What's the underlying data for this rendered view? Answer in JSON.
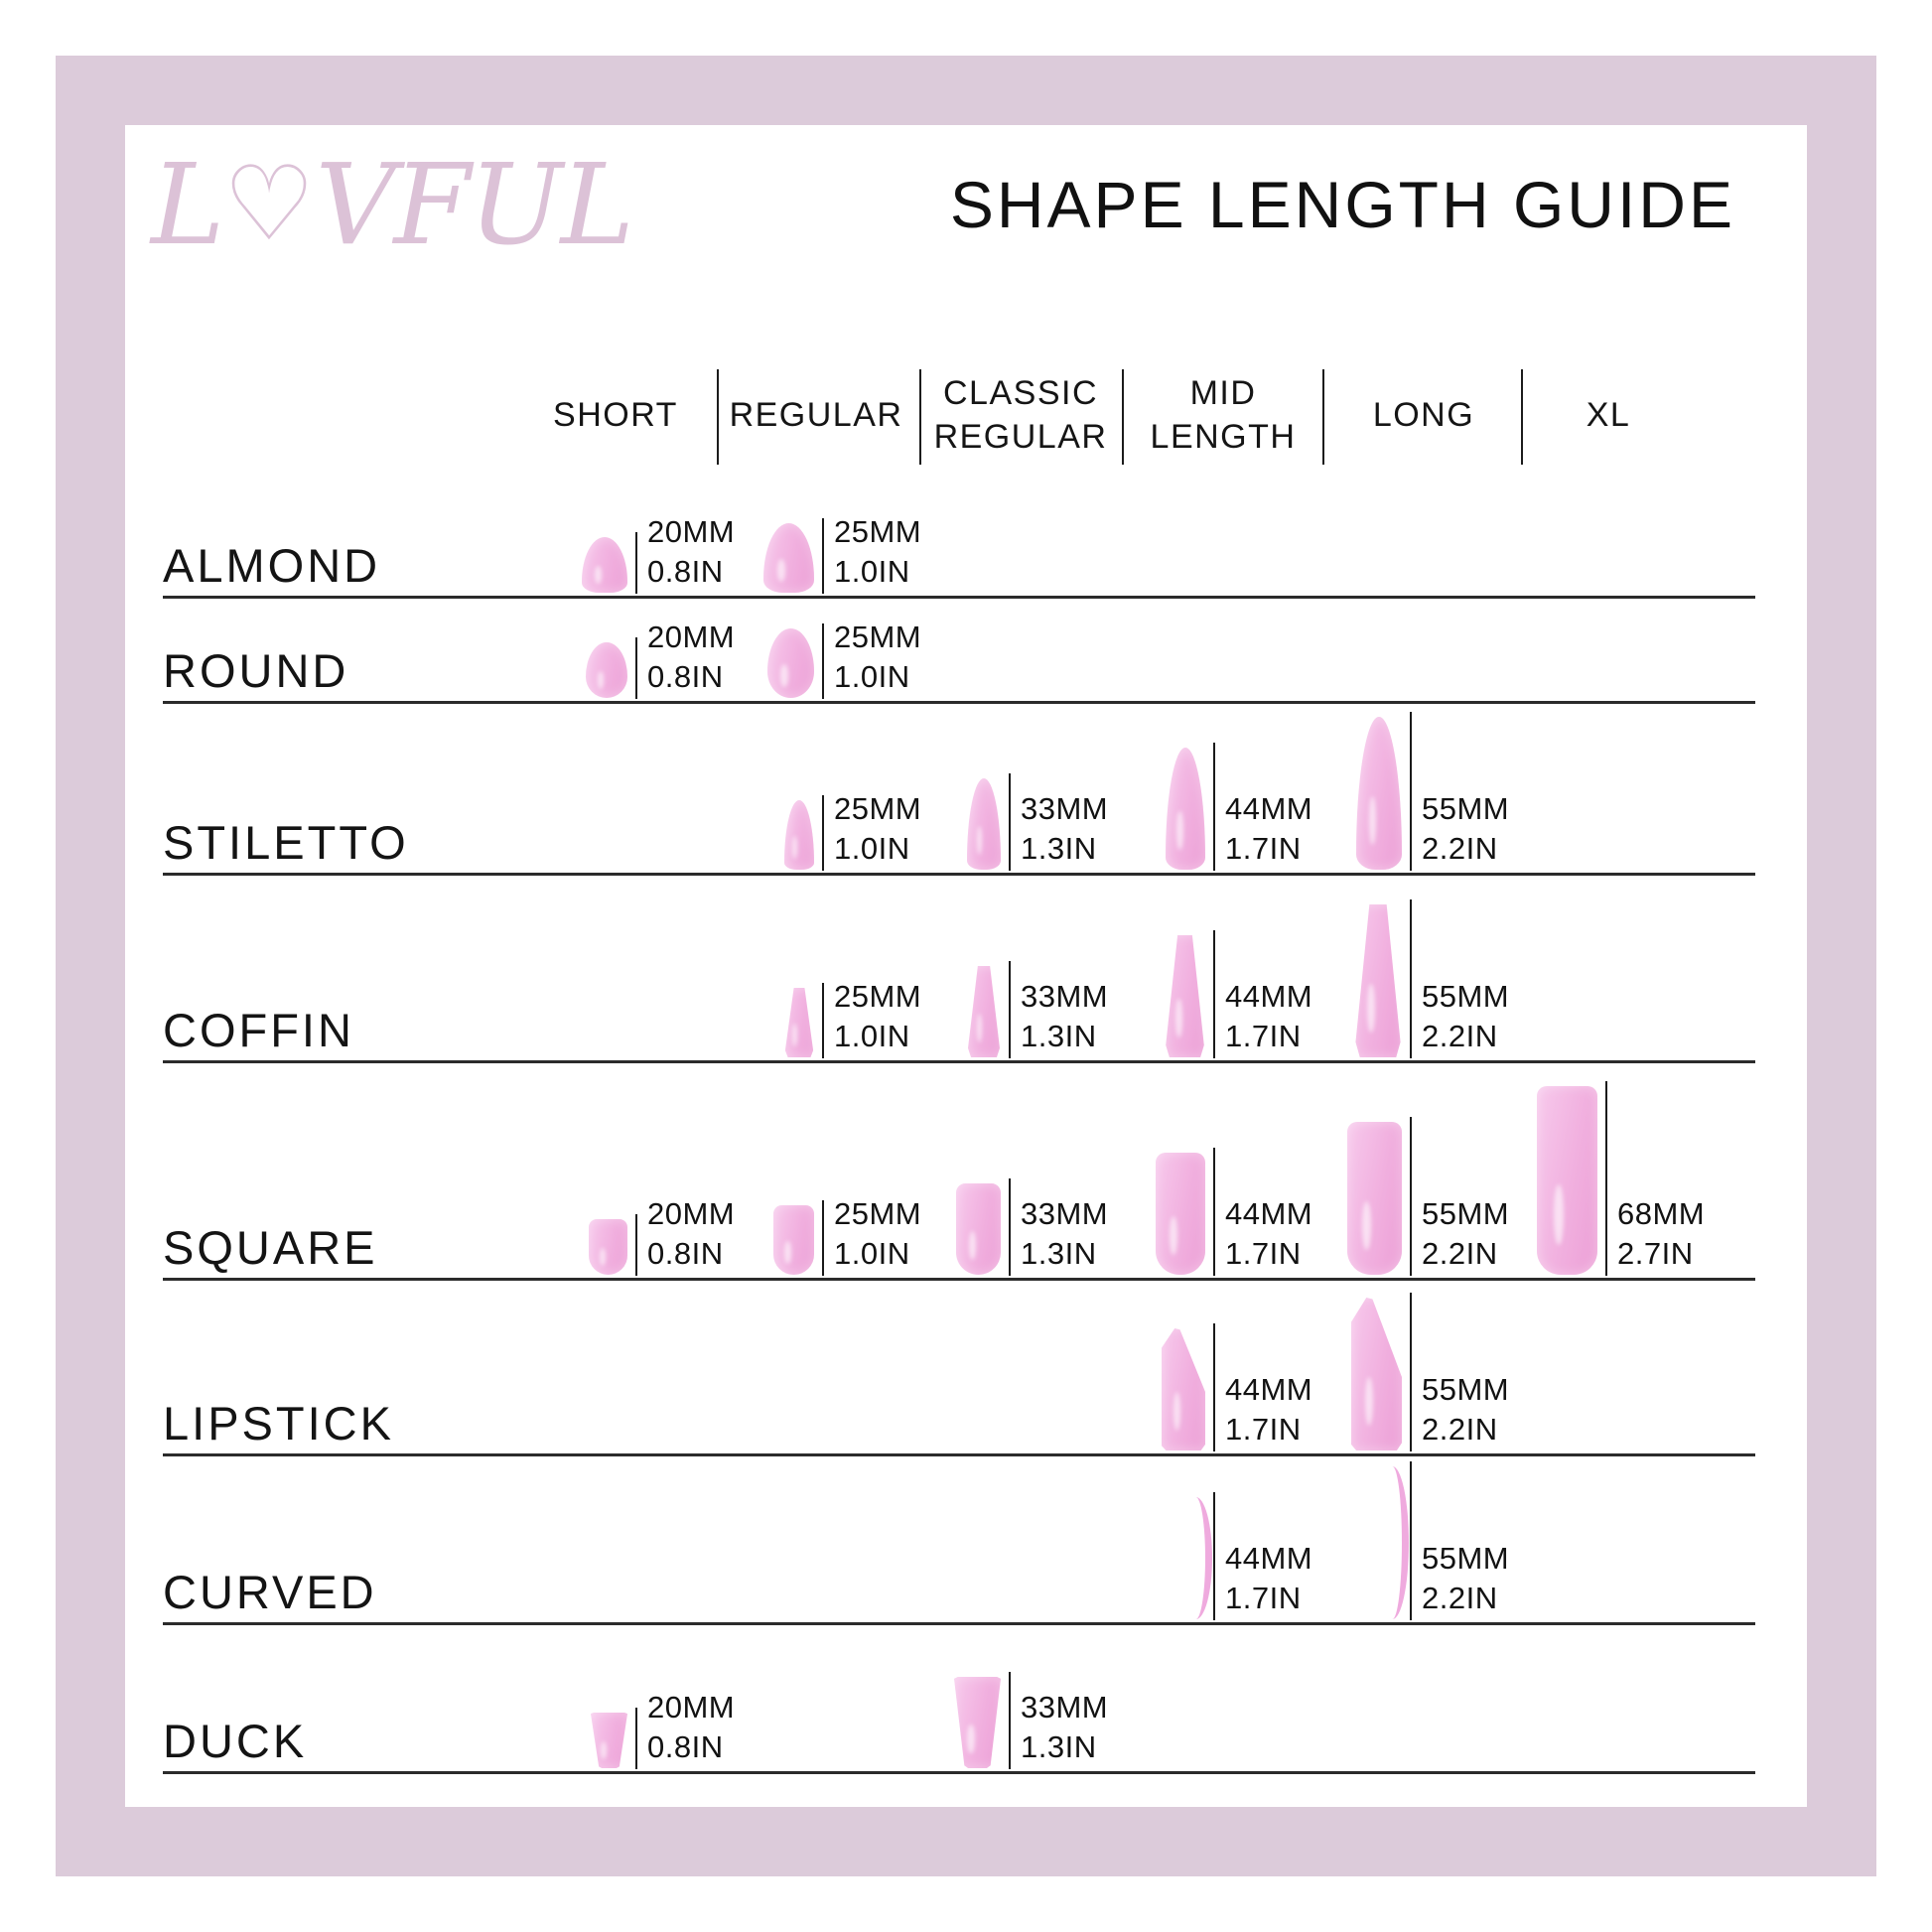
{
  "page": {
    "background": "#ffffff",
    "frame_color": "#dccbda",
    "nail_color": "#f0aede"
  },
  "logo": {
    "pre": "L",
    "heart": "♡",
    "post": "VFUL",
    "color": "#dcc2d7"
  },
  "title": "SHAPE LENGTH GUIDE",
  "columns": [
    {
      "id": "short",
      "lines": [
        "SHORT"
      ]
    },
    {
      "id": "regular",
      "lines": [
        "REGULAR"
      ]
    },
    {
      "id": "classic-regular",
      "lines": [
        "CLASSIC",
        "REGULAR"
      ]
    },
    {
      "id": "mid-length",
      "lines": [
        "MID",
        "LENGTH"
      ]
    },
    {
      "id": "long",
      "lines": [
        "LONG"
      ]
    },
    {
      "id": "xl",
      "lines": [
        "XL"
      ]
    }
  ],
  "rows": [
    {
      "label": "ALMOND",
      "shape": "almond",
      "cells": [
        {
          "column": "SHORT",
          "col": 0,
          "mm": "20MM",
          "inch": "0.8IN",
          "length_mm": 20
        },
        {
          "column": "REGULAR",
          "col": 1,
          "mm": "25MM",
          "inch": "1.0IN",
          "length_mm": 25
        }
      ]
    },
    {
      "label": "ROUND",
      "shape": "round",
      "cells": [
        {
          "column": "SHORT",
          "col": 0,
          "mm": "20MM",
          "inch": "0.8IN",
          "length_mm": 20
        },
        {
          "column": "REGULAR",
          "col": 1,
          "mm": "25MM",
          "inch": "1.0IN",
          "length_mm": 25
        }
      ]
    },
    {
      "label": "STILETTO",
      "shape": "stiletto",
      "cells": [
        {
          "column": "REGULAR",
          "col": 1,
          "mm": "25MM",
          "inch": "1.0IN",
          "length_mm": 25
        },
        {
          "column": "CLASSIC REGULAR",
          "col": 2,
          "mm": "33MM",
          "inch": "1.3IN",
          "length_mm": 33
        },
        {
          "column": "MID LENGTH",
          "col": 3,
          "mm": "44MM",
          "inch": "1.7IN",
          "length_mm": 44
        },
        {
          "column": "LONG",
          "col": 4,
          "mm": "55MM",
          "inch": "2.2IN",
          "length_mm": 55
        }
      ]
    },
    {
      "label": "COFFIN",
      "shape": "coffin",
      "cells": [
        {
          "column": "REGULAR",
          "col": 1,
          "mm": "25MM",
          "inch": "1.0IN",
          "length_mm": 25
        },
        {
          "column": "CLASSIC REGULAR",
          "col": 2,
          "mm": "33MM",
          "inch": "1.3IN",
          "length_mm": 33
        },
        {
          "column": "MID LENGTH",
          "col": 3,
          "mm": "44MM",
          "inch": "1.7IN",
          "length_mm": 44
        },
        {
          "column": "LONG",
          "col": 4,
          "mm": "55MM",
          "inch": "2.2IN",
          "length_mm": 55
        }
      ]
    },
    {
      "label": "SQUARE",
      "shape": "square",
      "cells": [
        {
          "column": "SHORT",
          "col": 0,
          "mm": "20MM",
          "inch": "0.8IN",
          "length_mm": 20
        },
        {
          "column": "REGULAR",
          "col": 1,
          "mm": "25MM",
          "inch": "1.0IN",
          "length_mm": 25
        },
        {
          "column": "CLASSIC REGULAR",
          "col": 2,
          "mm": "33MM",
          "inch": "1.3IN",
          "length_mm": 33
        },
        {
          "column": "MID LENGTH",
          "col": 3,
          "mm": "44MM",
          "inch": "1.7IN",
          "length_mm": 44
        },
        {
          "column": "LONG",
          "col": 4,
          "mm": "55MM",
          "inch": "2.2IN",
          "length_mm": 55
        },
        {
          "column": "XL",
          "col": 5,
          "mm": "68MM",
          "inch": "2.7IN",
          "length_mm": 68
        }
      ]
    },
    {
      "label": "LIPSTICK",
      "shape": "lipstick",
      "cells": [
        {
          "column": "MID LENGTH",
          "col": 3,
          "mm": "44MM",
          "inch": "1.7IN",
          "length_mm": 44
        },
        {
          "column": "LONG",
          "col": 4,
          "mm": "55MM",
          "inch": "2.2IN",
          "length_mm": 55
        }
      ]
    },
    {
      "label": "CURVED",
      "shape": "curved",
      "cells": [
        {
          "column": "MID LENGTH",
          "col": 3,
          "mm": "44MM",
          "inch": "1.7IN",
          "length_mm": 44
        },
        {
          "column": "LONG",
          "col": 4,
          "mm": "55MM",
          "inch": "2.2IN",
          "length_mm": 55
        }
      ]
    },
    {
      "label": "DUCK",
      "shape": "duck",
      "cells": [
        {
          "column": "SHORT",
          "col": 0,
          "mm": "20MM",
          "inch": "0.8IN",
          "length_mm": 20
        },
        {
          "column": "CLASSIC REGULAR",
          "col": 2,
          "mm": "33MM",
          "inch": "1.3IN",
          "length_mm": 33
        }
      ]
    }
  ]
}
